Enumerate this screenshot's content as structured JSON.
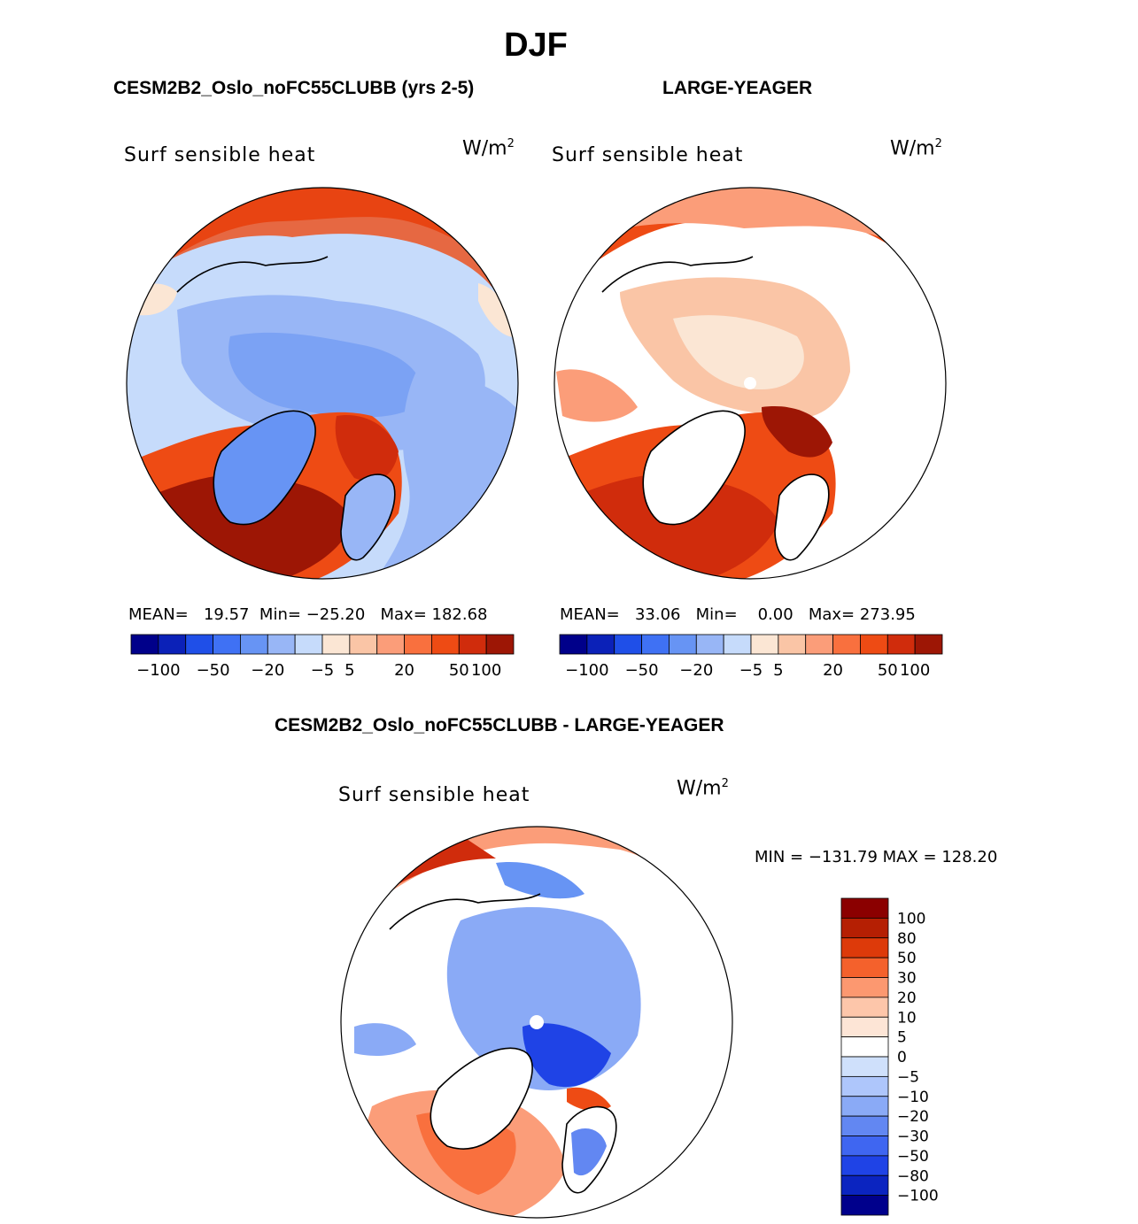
{
  "page_title": "DJF",
  "panels": [
    {
      "id": "model",
      "header": "CESM2B2_Oslo_noFC55CLUBB (yrs 2-5)",
      "variable": "Surf sensible heat",
      "units_base": "W/m",
      "units_exp": "2",
      "stats": {
        "mean_label": "MEAN=",
        "mean": "19.57",
        "min_label": "Min=",
        "min": "−25.20",
        "max_label": "Max=",
        "max": "182.68"
      }
    },
    {
      "id": "obs",
      "header": "LARGE-YEAGER",
      "variable": "Surf sensible heat",
      "units_base": "W/m",
      "units_exp": "2",
      "stats": {
        "mean_label": "MEAN=",
        "mean": "33.06",
        "min_label": "Min=",
        "min": "0.00",
        "max_label": "Max=",
        "max": "273.95"
      }
    },
    {
      "id": "diff",
      "header": "CESM2B2_Oslo_noFC55CLUBB - LARGE-YEAGER",
      "variable": "Surf sensible heat",
      "units_base": "W/m",
      "units_exp": "2",
      "minmax": "MIN = −131.79 MAX = 128.20"
    }
  ],
  "colors": {
    "levels16": [
      "#00008a",
      "#0b21b8",
      "#1f4fe8",
      "#3f71f4",
      "#6794f4",
      "#98b6f6",
      "#c6dbfb",
      "#fbe6d4",
      "#fac5a6",
      "#fb9d79",
      "#f9703e",
      "#ee4b14",
      "#d02c0c",
      "#9d1605"
    ],
    "diff_scale": [
      "#8b0000",
      "#b51f03",
      "#dd3a0a",
      "#f4612c",
      "#fc9870",
      "#fdc6aa",
      "#fde5d6",
      "#ffffff",
      "#cfe0fb",
      "#aec6fb",
      "#8aaaf6",
      "#6287f2",
      "#3f66f1",
      "#1f43e6",
      "#0b24c0",
      "#00008c"
    ],
    "land": "#ffffff"
  },
  "chart_data": [
    {
      "type": "heatmap",
      "title": "Surf sensible heat",
      "units": "W/m^2",
      "colorbar_ticks": [
        "−100",
        "−50",
        "−20",
        "−5",
        "5",
        "20",
        "50",
        "100"
      ],
      "mean": 19.57,
      "min": -25.2,
      "max": 182.68
    },
    {
      "type": "heatmap",
      "title": "Surf sensible heat",
      "units": "W/m^2",
      "colorbar_ticks": [
        "−100",
        "−50",
        "−20",
        "−5",
        "5",
        "20",
        "50",
        "100"
      ],
      "mean": 33.06,
      "min": 0.0,
      "max": 273.95
    },
    {
      "type": "heatmap",
      "title": "Surf sensible heat",
      "units": "W/m^2",
      "colorbar_ticks": [
        "100",
        "80",
        "50",
        "30",
        "20",
        "10",
        "5",
        "0",
        "−5",
        "−10",
        "−20",
        "−30",
        "−50",
        "−80",
        "−100"
      ],
      "min": -131.79,
      "max": 128.2
    }
  ]
}
